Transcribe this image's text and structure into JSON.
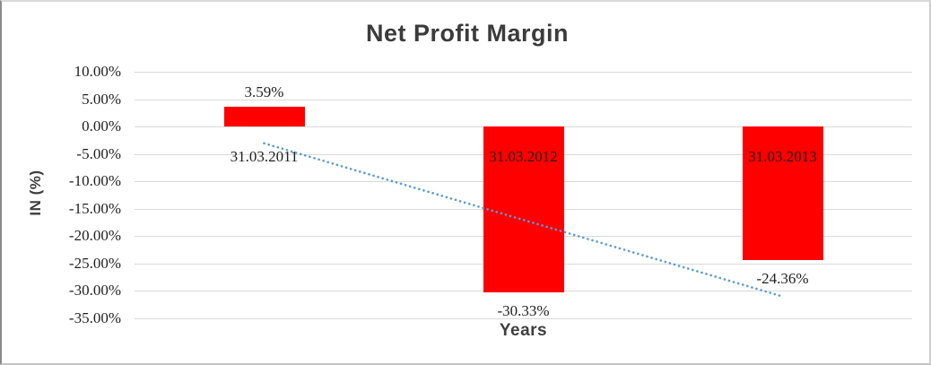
{
  "window": {
    "background": "#ffffff",
    "border_color": "#c4c4c4"
  },
  "chart_data": {
    "type": "bar",
    "title": "Net Profit Margin",
    "categories": [
      "31.03.2011",
      "31.03.2012",
      "31.03.2013"
    ],
    "values": [
      3.59,
      -30.33,
      -24.36
    ],
    "data_labels": [
      "3.59%",
      "-30.33%",
      "-24.36%"
    ],
    "xlabel": "Years",
    "ylabel": "IN (%)",
    "ylim": [
      -35,
      10
    ],
    "ytick_step": 5,
    "yticks": [
      10,
      5,
      0,
      -5,
      -10,
      -15,
      -20,
      -25,
      -30,
      -35
    ],
    "ytick_labels": [
      "10.00%",
      "5.00%",
      "0.00%",
      "-5.00%",
      "-10.00%",
      "-15.00%",
      "-20.00%",
      "-25.00%",
      "-30.00%",
      "-35.00%"
    ],
    "grid": true,
    "legend": false,
    "colors": {
      "bar": "#ff0000",
      "gridline": "#d9d9d9",
      "title": "#3b3b3b",
      "axis_title": "#3f3f3f",
      "labels": "#1f1f1f",
      "trendline": "#5b9bd5"
    },
    "trendline": {
      "kind": "linear",
      "style": "dotted",
      "color": "#5b9bd5",
      "start_value": -3.06,
      "end_value": -31.01
    }
  }
}
